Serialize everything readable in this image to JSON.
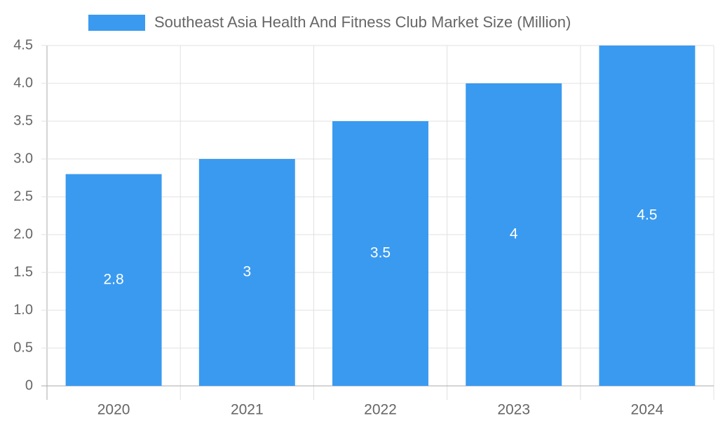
{
  "chart_data": {
    "type": "bar",
    "series": [
      {
        "name": "Southeast Asia Health And Fitness Club Market Size (Million)",
        "color": "#3a9af0",
        "values": [
          2.8,
          3,
          3.5,
          4,
          4.5
        ]
      }
    ],
    "categories": [
      "2020",
      "2021",
      "2022",
      "2023",
      "2024"
    ],
    "ylim": [
      0,
      4.5
    ],
    "yticks": [
      0,
      0.5,
      {
        "value": 1,
        "label": "1.0"
      },
      1.5,
      {
        "value": 2,
        "label": "2.0"
      },
      2.5,
      {
        "value": 3,
        "label": "3.0"
      },
      3.5,
      {
        "value": 4,
        "label": "4.0"
      },
      4.5
    ],
    "grid": true,
    "legend": "top"
  }
}
